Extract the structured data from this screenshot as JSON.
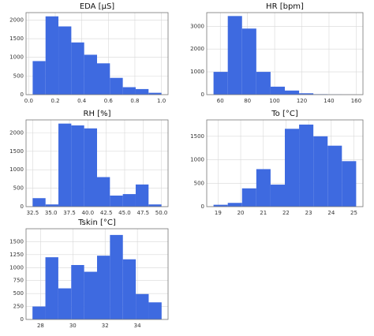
{
  "chart_data": [
    {
      "type": "histogram",
      "title": "EDA [μS]",
      "color": "#3e6ae0",
      "grid": true,
      "bins": [
        0.03,
        0.127,
        0.224,
        0.321,
        0.418,
        0.515,
        0.612,
        0.709,
        0.806,
        0.903,
        1.0
      ],
      "counts": [
        900,
        2100,
        1830,
        1400,
        1070,
        840,
        450,
        200,
        150,
        50
      ],
      "xlim": [
        -0.02,
        1.05
      ],
      "ylim": [
        0,
        2200
      ],
      "xticks": [
        {
          "value": 0,
          "label": "0.0"
        },
        0.2,
        0.4,
        0.6,
        0.8,
        {
          "value": 1,
          "label": "1.0"
        }
      ],
      "yticks": [
        0,
        500,
        1000,
        1500,
        2000
      ]
    },
    {
      "type": "histogram",
      "title": "HR [bpm]",
      "color": "#3e6ae0",
      "grid": true,
      "bins": [
        55,
        65.5,
        76,
        86.5,
        97,
        107.5,
        118,
        128.5,
        139,
        149.5,
        160
      ],
      "counts": [
        1000,
        3450,
        2900,
        1000,
        350,
        180,
        60,
        20,
        10,
        5
      ],
      "xlim": [
        50,
        165
      ],
      "ylim": [
        0,
        3600
      ],
      "xticks": [
        60,
        80,
        100,
        120,
        140,
        160
      ],
      "yticks": [
        0,
        1000,
        2000,
        3000
      ]
    },
    {
      "type": "histogram",
      "title": "RH [%]",
      "color": "#3e6ae0",
      "grid": true,
      "bins": [
        32.5,
        34.25,
        36,
        37.75,
        39.5,
        41.25,
        43,
        44.75,
        46.5,
        48.25,
        50
      ],
      "counts": [
        230,
        60,
        2250,
        2200,
        2120,
        800,
        300,
        340,
        600,
        60
      ],
      "xlim": [
        31.6,
        50.9
      ],
      "ylim": [
        0,
        2350
      ],
      "xticks": [
        32.5,
        {
          "value": 35,
          "label": "35.0"
        },
        37.5,
        {
          "value": 40,
          "label": "40.0"
        },
        42.5,
        {
          "value": 45,
          "label": "45.0"
        },
        47.5,
        {
          "value": 50,
          "label": "50.0"
        }
      ],
      "yticks": [
        0,
        500,
        1000,
        1500,
        2000
      ]
    },
    {
      "type": "histogram",
      "title": "To [°C]",
      "color": "#3e6ae0",
      "grid": true,
      "bins": [
        18.8,
        19.43,
        20.06,
        20.69,
        21.32,
        21.95,
        22.58,
        23.21,
        23.84,
        24.47,
        25.1
      ],
      "counts": [
        40,
        80,
        390,
        800,
        470,
        1660,
        1750,
        1500,
        1300,
        970
      ],
      "xlim": [
        18.5,
        25.4
      ],
      "ylim": [
        0,
        1850
      ],
      "xticks": [
        19,
        20,
        21,
        22,
        23,
        24,
        25
      ],
      "yticks": [
        0,
        500,
        1000,
        1500
      ]
    },
    {
      "type": "histogram",
      "title": "Tskin [°C]",
      "color": "#3e6ae0",
      "grid": true,
      "bins": [
        27.5,
        28.3,
        29.1,
        29.9,
        30.7,
        31.5,
        32.3,
        33.1,
        33.9,
        34.7,
        35.5
      ],
      "counts": [
        250,
        1200,
        600,
        1050,
        920,
        1230,
        1630,
        1160,
        490,
        330
      ],
      "xlim": [
        27.1,
        35.9
      ],
      "ylim": [
        0,
        1750
      ],
      "xticks": [
        28,
        30,
        32,
        34
      ],
      "yticks": [
        0,
        250,
        500,
        750,
        1000,
        1250,
        1500
      ]
    }
  ]
}
